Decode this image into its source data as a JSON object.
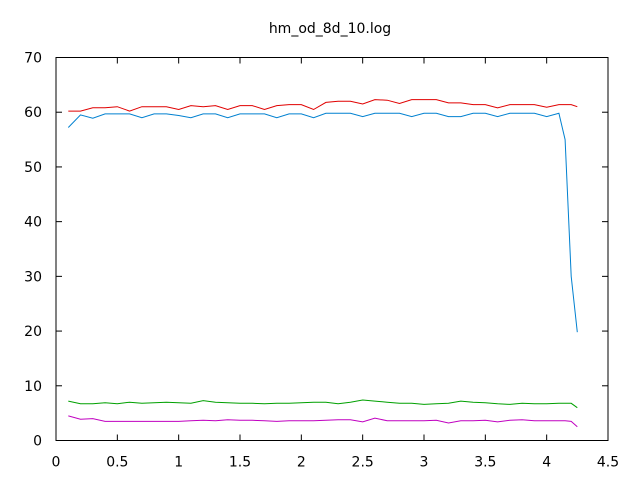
{
  "chart_data": {
    "type": "line",
    "title": "hm_od_8d_10.log",
    "xlabel": "",
    "ylabel": "",
    "xlim": [
      0,
      4.5
    ],
    "ylim": [
      0,
      70
    ],
    "xticks": [
      0,
      0.5,
      1,
      1.5,
      2,
      2.5,
      3,
      3.5,
      4,
      4.5
    ],
    "xtick_labels": [
      "0",
      "0.5",
      "1",
      "1.5",
      "2",
      "2.5",
      "3",
      "3.5",
      "4",
      "4.5"
    ],
    "yticks": [
      0,
      10,
      20,
      30,
      40,
      50,
      60,
      70
    ],
    "ytick_labels": [
      "0",
      "10",
      "20",
      "30",
      "40",
      "50",
      "60",
      "70"
    ],
    "grid": false,
    "legend": "none",
    "x": [
      0.1,
      0.2,
      0.3,
      0.4,
      0.5,
      0.6,
      0.7,
      0.8,
      0.9,
      1.0,
      1.1,
      1.2,
      1.3,
      1.4,
      1.5,
      1.6,
      1.7,
      1.8,
      1.9,
      2.0,
      2.1,
      2.2,
      2.3,
      2.4,
      2.5,
      2.6,
      2.7,
      2.8,
      2.9,
      3.0,
      3.1,
      3.2,
      3.3,
      3.4,
      3.5,
      3.6,
      3.7,
      3.8,
      3.9,
      4.0,
      4.1,
      4.15,
      4.2,
      4.25
    ],
    "series": [
      {
        "color": "#e00000",
        "values": [
          60.2,
          60.2,
          60.8,
          60.8,
          61.0,
          60.2,
          61.0,
          61.0,
          61.0,
          60.5,
          61.2,
          61.0,
          61.2,
          60.5,
          61.2,
          61.2,
          60.5,
          61.2,
          61.4,
          61.4,
          60.5,
          61.8,
          62.0,
          62.0,
          61.5,
          62.3,
          62.2,
          61.6,
          62.3,
          62.3,
          62.3,
          61.7,
          61.7,
          61.4,
          61.4,
          60.8,
          61.4,
          61.4,
          61.4,
          60.9,
          61.4,
          61.4,
          61.4,
          61.0
        ]
      },
      {
        "color": "#0080d0",
        "values": [
          57.2,
          59.5,
          58.9,
          59.7,
          59.7,
          59.7,
          59.0,
          59.7,
          59.7,
          59.4,
          59.0,
          59.7,
          59.7,
          59.0,
          59.7,
          59.7,
          59.7,
          59.0,
          59.7,
          59.7,
          59.0,
          59.8,
          59.8,
          59.8,
          59.2,
          59.8,
          59.8,
          59.8,
          59.2,
          59.8,
          59.8,
          59.2,
          59.2,
          59.8,
          59.8,
          59.2,
          59.8,
          59.8,
          59.8,
          59.2,
          59.8,
          55.0,
          30.0,
          19.8
        ]
      },
      {
        "color": "#00a000",
        "values": [
          7.2,
          6.7,
          6.7,
          6.9,
          6.7,
          7.0,
          6.8,
          6.9,
          7.0,
          6.9,
          6.8,
          7.3,
          7.0,
          6.9,
          6.8,
          6.8,
          6.7,
          6.8,
          6.8,
          6.9,
          7.0,
          7.0,
          6.7,
          7.0,
          7.4,
          7.2,
          7.0,
          6.8,
          6.8,
          6.6,
          6.7,
          6.8,
          7.2,
          7.0,
          6.9,
          6.7,
          6.6,
          6.8,
          6.7,
          6.7,
          6.8,
          6.8,
          6.8,
          6.0
        ]
      },
      {
        "color": "#c000c0",
        "values": [
          4.5,
          3.9,
          4.0,
          3.5,
          3.5,
          3.5,
          3.5,
          3.5,
          3.5,
          3.5,
          3.6,
          3.7,
          3.6,
          3.8,
          3.7,
          3.7,
          3.6,
          3.5,
          3.6,
          3.6,
          3.6,
          3.7,
          3.8,
          3.8,
          3.4,
          4.1,
          3.6,
          3.6,
          3.6,
          3.6,
          3.7,
          3.2,
          3.6,
          3.6,
          3.7,
          3.4,
          3.7,
          3.8,
          3.6,
          3.6,
          3.6,
          3.6,
          3.5,
          2.5
        ]
      }
    ]
  }
}
